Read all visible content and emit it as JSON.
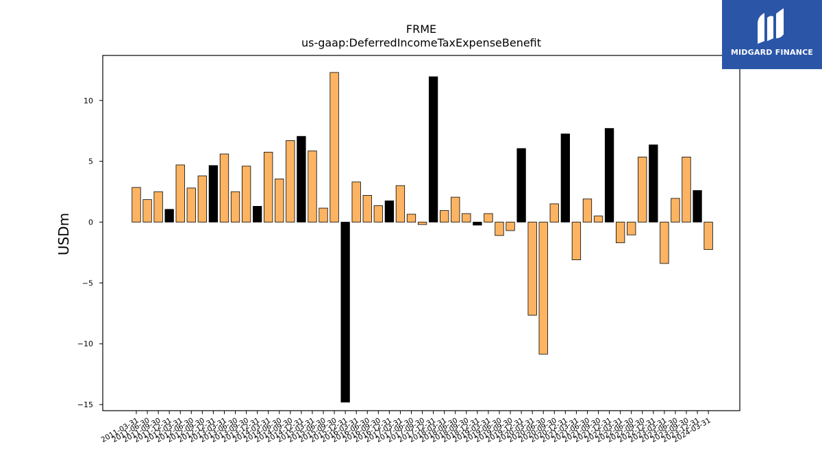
{
  "chart_data": {
    "type": "bar",
    "title": "FRME",
    "subtitle": "us-gaap:DeferredIncomeTaxExpenseBenefit",
    "xlabel": "",
    "ylabel": "USDm",
    "ylim": [
      -15.5,
      13.7
    ],
    "yticks": [
      -15,
      -10,
      -5,
      0,
      5,
      10
    ],
    "ytick_labels": [
      "−15",
      "−10",
      "−5",
      "0",
      "5",
      "10"
    ],
    "grid": false,
    "colors": {
      "quarterly": "#fdb462",
      "annual": "#000000",
      "edge": "#000000"
    },
    "tick_labels": [
      "2011-03-31",
      "2011-06-30",
      "2011-09-30",
      "2011-12-31",
      "2012-03-31",
      "2012-06-30",
      "2012-09-30",
      "2012-12-31",
      "2013-03-31",
      "2013-06-30",
      "2013-09-30",
      "2013-12-31",
      "2014-03-31",
      "2014-06-30",
      "2014-09-30",
      "2014-12-31",
      "2015-03-31",
      "2015-06-30",
      "2015-09-30",
      "2015-12-31",
      "2016-03-31",
      "2016-06-30",
      "2016-09-30",
      "2016-12-31",
      "2017-03-31",
      "2017-06-30",
      "2017-09-30",
      "2017-12-31",
      "2018-03-31",
      "2018-06-30",
      "2018-09-30",
      "2018-12-31",
      "2019-03-31",
      "2019-06-30",
      "2019-09-30",
      "2019-12-31",
      "2020-03-31",
      "2020-06-30",
      "2020-09-30",
      "2020-12-31",
      "2021-03-31",
      "2021-06-30",
      "2021-09-30",
      "2021-12-31",
      "2022-03-31",
      "2022-06-30",
      "2022-09-30",
      "2022-12-31",
      "2023-03-31",
      "2023-06-30",
      "2023-09-30",
      "2023-12-31",
      "2024-03-31"
    ],
    "values": [
      2.85,
      1.85,
      2.5,
      1.05,
      4.7,
      2.8,
      3.8,
      4.65,
      5.6,
      2.5,
      4.6,
      1.3,
      5.75,
      3.55,
      6.7,
      7.05,
      5.85,
      1.15,
      12.3,
      -14.8,
      3.3,
      2.2,
      1.35,
      1.75,
      3.0,
      0.65,
      -0.2,
      11.95,
      0.95,
      2.05,
      0.7,
      -0.25,
      0.7,
      -1.1,
      -0.7,
      6.05,
      -7.65,
      -10.85,
      1.5,
      7.25,
      -3.1,
      1.9,
      0.5,
      7.7,
      -1.7,
      -1.05,
      5.35,
      6.35,
      -3.4,
      1.95,
      5.35,
      2.6,
      -2.25
    ],
    "is_annual": [
      false,
      false,
      false,
      true,
      false,
      false,
      false,
      true,
      false,
      false,
      false,
      true,
      false,
      false,
      false,
      true,
      false,
      false,
      false,
      true,
      false,
      false,
      false,
      true,
      false,
      false,
      false,
      true,
      false,
      false,
      false,
      true,
      false,
      false,
      false,
      true,
      false,
      false,
      false,
      true,
      false,
      false,
      false,
      true,
      false,
      false,
      false,
      true,
      false,
      false,
      false,
      true,
      false
    ]
  },
  "logo": {
    "text": "MIDGARD FINANCE",
    "icon": "midgard-logo-icon"
  }
}
